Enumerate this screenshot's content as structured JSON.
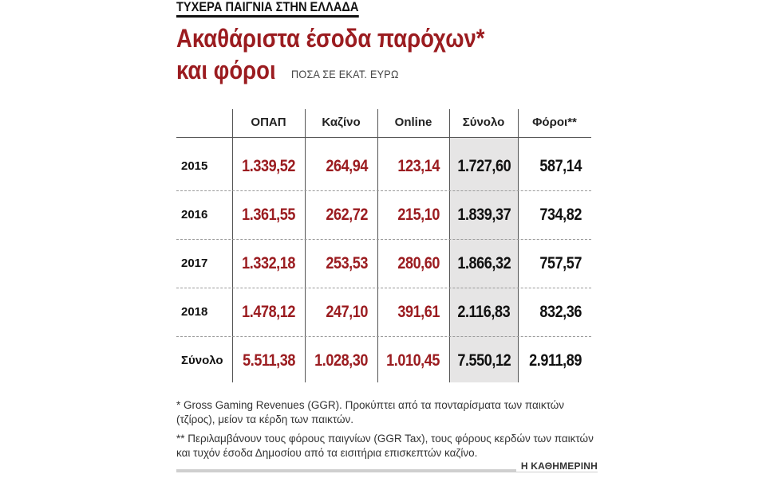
{
  "kicker": "ΤΥΧΕΡΑ ΠΑΙΓΝΙΑ ΣΤΗΝ ΕΛΛΑΔΑ",
  "title_line1": "Ακαθάριστα έσοδα παρόχων*",
  "title_line2": "και φόροι",
  "subtitle": "ΠΟΣΑ ΣΕ ΕΚΑΤ. ΕΥΡΩ",
  "colors": {
    "accent": "#9b1c20",
    "text": "#111111",
    "shade": "#e6e5e5"
  },
  "chart_data": {
    "type": "table",
    "columns": [
      "ΟΠΑΠ",
      "Καζίνο",
      "Online",
      "Σύνολο",
      "Φόροι**"
    ],
    "rows": [
      {
        "label": "2015",
        "values": [
          "1.339,52",
          "264,94",
          "123,14",
          "1.727,60",
          "587,14"
        ]
      },
      {
        "label": "2016",
        "values": [
          "1.361,55",
          "262,72",
          "215,10",
          "1.839,37",
          "734,82"
        ]
      },
      {
        "label": "2017",
        "values": [
          "1.332,18",
          "253,53",
          "280,60",
          "1.866,32",
          "757,57"
        ]
      },
      {
        "label": "2018",
        "values": [
          "1.478,12",
          "247,10",
          "391,61",
          "2.116,83",
          "832,36"
        ]
      },
      {
        "label": "Σύνολο",
        "values": [
          "5.511,38",
          "1.028,30",
          "1.010,45",
          "7.550,12",
          "2.911,89"
        ]
      }
    ]
  },
  "notes": {
    "note1": "* Gross Gaming Revenues (GGR). Προκύπτει από τα πονταρίσματα των παικτών (τζίρος), μείον τα κέρδη των παικτών.",
    "note2": "** Περιλαμβάνουν τους φόρους παιγνίων (GGR Tax), τους φόρους κερδών των παικτών και τυχόν έσοδα Δημοσίου από τα εισιτήρια επισκεπτών καζίνο."
  },
  "source": "Η ΚΑΘΗΜΕΡΙΝΗ"
}
